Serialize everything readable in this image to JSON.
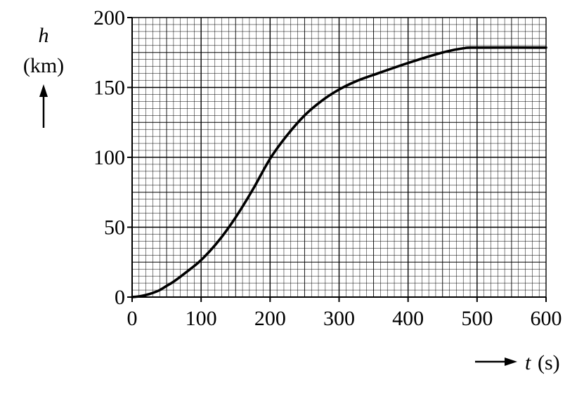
{
  "chart_data": {
    "type": "line",
    "title": "",
    "xlabel": {
      "symbol": "t",
      "unit": "(s)"
    },
    "ylabel": {
      "symbol": "h",
      "unit": "(km)"
    },
    "xlim": [
      0,
      600
    ],
    "ylim": [
      0,
      200
    ],
    "x_ticks": [
      0,
      100,
      200,
      300,
      400,
      500,
      600
    ],
    "y_ticks": [
      0,
      50,
      100,
      150,
      200
    ],
    "x_tick_labels": [
      "0",
      "100",
      "200",
      "300",
      "400",
      "500",
      "600"
    ],
    "y_tick_labels": [
      "0",
      "50",
      "100",
      "150",
      "200"
    ],
    "grid": true,
    "grid_minor_step": {
      "x": 10,
      "y": 5
    },
    "series": [
      {
        "x": [
          0,
          10,
          20,
          30,
          40,
          50,
          60,
          75,
          100,
          125,
          150,
          175,
          200,
          225,
          250,
          275,
          300,
          325,
          350,
          400,
          450,
          480,
          500,
          600
        ],
        "y": [
          0,
          0.5,
          1.5,
          3,
          5,
          8,
          11,
          16.5,
          26.5,
          40,
          57,
          77,
          99,
          116,
          130,
          140.5,
          148.5,
          154.5,
          159,
          167.5,
          175,
          178,
          178.5,
          178.5
        ]
      }
    ]
  }
}
